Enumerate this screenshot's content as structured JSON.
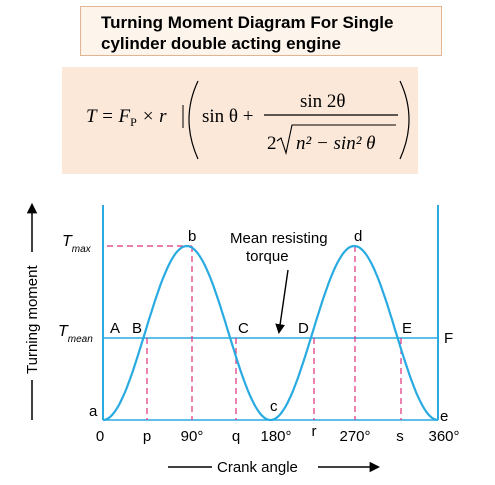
{
  "title": {
    "line1": "Turning Moment Diagram For Single",
    "line2": "cylinder double acting engine"
  },
  "formula": {
    "lhs": "T = ",
    "force_symbol": "F",
    "force_subscript": "P",
    "times_r": " × r",
    "sin_theta_plus": "sin θ  +",
    "numerator": "sin 2θ",
    "denominator_coeff": "2",
    "denominator_radicand": "n² − sin² θ"
  },
  "diagram": {
    "y_axis_label": "Turning moment",
    "x_axis_label": "Crank angle",
    "t_max_label": "T",
    "t_max_sub": "max",
    "t_mean_label": "T",
    "t_mean_sub": "mean",
    "annotation_line1": "Mean resisting",
    "annotation_line2": "torque",
    "point_labels": {
      "a": "a",
      "b": "b",
      "c": "c",
      "d": "d",
      "e": "e",
      "A": "A",
      "B": "B",
      "C": "C",
      "D": "D",
      "E": "E",
      "F": "F"
    },
    "tick_labels": [
      "0",
      "p",
      "90°",
      "q",
      "180°",
      "r",
      "270°",
      "s",
      "360°"
    ],
    "colors": {
      "curve": "#29abe2",
      "mean_line": "#29abe2",
      "dashed": "#e0307a",
      "axis": "#000000"
    }
  }
}
